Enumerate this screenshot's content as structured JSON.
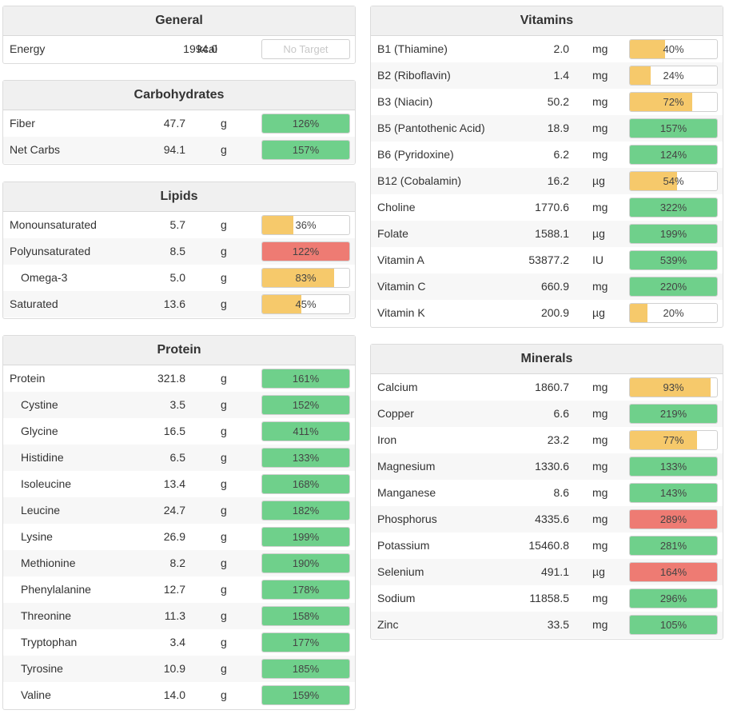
{
  "colors": {
    "green": "#6fd08b",
    "yellow": "#f6c96b",
    "red": "#ee7b73"
  },
  "general": {
    "title": "General",
    "rows": [
      {
        "name": "Energy",
        "amount": "1994.0",
        "unit": "kcal",
        "pct": "No Target",
        "fill": 0,
        "color": "none",
        "indent": false
      }
    ]
  },
  "carbohydrates": {
    "title": "Carbohydrates",
    "rows": [
      {
        "name": "Fiber",
        "amount": "47.7",
        "unit": "g",
        "pct": "126%",
        "fill": 1,
        "color": "green",
        "indent": false
      },
      {
        "name": "Net Carbs",
        "amount": "94.1",
        "unit": "g",
        "pct": "157%",
        "fill": 1,
        "color": "green",
        "indent": false
      }
    ]
  },
  "lipids": {
    "title": "Lipids",
    "rows": [
      {
        "name": "Monounsaturated",
        "amount": "5.7",
        "unit": "g",
        "pct": "36%",
        "fill": 0.36,
        "color": "yellow",
        "indent": false
      },
      {
        "name": "Polyunsaturated",
        "amount": "8.5",
        "unit": "g",
        "pct": "122%",
        "fill": 1,
        "color": "red",
        "indent": false
      },
      {
        "name": "Omega-3",
        "amount": "5.0",
        "unit": "g",
        "pct": "83%",
        "fill": 0.83,
        "color": "yellow",
        "indent": true
      },
      {
        "name": "Saturated",
        "amount": "13.6",
        "unit": "g",
        "pct": "45%",
        "fill": 0.45,
        "color": "yellow",
        "indent": false
      }
    ]
  },
  "protein": {
    "title": "Protein",
    "rows": [
      {
        "name": "Protein",
        "amount": "321.8",
        "unit": "g",
        "pct": "161%",
        "fill": 1,
        "color": "green",
        "indent": false
      },
      {
        "name": "Cystine",
        "amount": "3.5",
        "unit": "g",
        "pct": "152%",
        "fill": 1,
        "color": "green",
        "indent": true
      },
      {
        "name": "Glycine",
        "amount": "16.5",
        "unit": "g",
        "pct": "411%",
        "fill": 1,
        "color": "green",
        "indent": true
      },
      {
        "name": "Histidine",
        "amount": "6.5",
        "unit": "g",
        "pct": "133%",
        "fill": 1,
        "color": "green",
        "indent": true
      },
      {
        "name": "Isoleucine",
        "amount": "13.4",
        "unit": "g",
        "pct": "168%",
        "fill": 1,
        "color": "green",
        "indent": true
      },
      {
        "name": "Leucine",
        "amount": "24.7",
        "unit": "g",
        "pct": "182%",
        "fill": 1,
        "color": "green",
        "indent": true
      },
      {
        "name": "Lysine",
        "amount": "26.9",
        "unit": "g",
        "pct": "199%",
        "fill": 1,
        "color": "green",
        "indent": true
      },
      {
        "name": "Methionine",
        "amount": "8.2",
        "unit": "g",
        "pct": "190%",
        "fill": 1,
        "color": "green",
        "indent": true
      },
      {
        "name": "Phenylalanine",
        "amount": "12.7",
        "unit": "g",
        "pct": "178%",
        "fill": 1,
        "color": "green",
        "indent": true
      },
      {
        "name": "Threonine",
        "amount": "11.3",
        "unit": "g",
        "pct": "158%",
        "fill": 1,
        "color": "green",
        "indent": true
      },
      {
        "name": "Tryptophan",
        "amount": "3.4",
        "unit": "g",
        "pct": "177%",
        "fill": 1,
        "color": "green",
        "indent": true
      },
      {
        "name": "Tyrosine",
        "amount": "10.9",
        "unit": "g",
        "pct": "185%",
        "fill": 1,
        "color": "green",
        "indent": true
      },
      {
        "name": "Valine",
        "amount": "14.0",
        "unit": "g",
        "pct": "159%",
        "fill": 1,
        "color": "green",
        "indent": true
      }
    ]
  },
  "vitamins": {
    "title": "Vitamins",
    "rows": [
      {
        "name": "B1 (Thiamine)",
        "amount": "2.0",
        "unit": "mg",
        "pct": "40%",
        "fill": 0.4,
        "color": "yellow",
        "indent": false
      },
      {
        "name": "B2 (Riboflavin)",
        "amount": "1.4",
        "unit": "mg",
        "pct": "24%",
        "fill": 0.24,
        "color": "yellow",
        "indent": false
      },
      {
        "name": "B3 (Niacin)",
        "amount": "50.2",
        "unit": "mg",
        "pct": "72%",
        "fill": 0.72,
        "color": "yellow",
        "indent": false
      },
      {
        "name": "B5 (Pantothenic Acid)",
        "amount": "18.9",
        "unit": "mg",
        "pct": "157%",
        "fill": 1,
        "color": "green",
        "indent": false
      },
      {
        "name": "B6 (Pyridoxine)",
        "amount": "6.2",
        "unit": "mg",
        "pct": "124%",
        "fill": 1,
        "color": "green",
        "indent": false
      },
      {
        "name": "B12 (Cobalamin)",
        "amount": "16.2",
        "unit": "µg",
        "pct": "54%",
        "fill": 0.54,
        "color": "yellow",
        "indent": false
      },
      {
        "name": "Choline",
        "amount": "1770.6",
        "unit": "mg",
        "pct": "322%",
        "fill": 1,
        "color": "green",
        "indent": false
      },
      {
        "name": "Folate",
        "amount": "1588.1",
        "unit": "µg",
        "pct": "199%",
        "fill": 1,
        "color": "green",
        "indent": false
      },
      {
        "name": "Vitamin A",
        "amount": "53877.2",
        "unit": "IU",
        "pct": "539%",
        "fill": 1,
        "color": "green",
        "indent": false
      },
      {
        "name": "Vitamin C",
        "amount": "660.9",
        "unit": "mg",
        "pct": "220%",
        "fill": 1,
        "color": "green",
        "indent": false
      },
      {
        "name": "Vitamin K",
        "amount": "200.9",
        "unit": "µg",
        "pct": "20%",
        "fill": 0.2,
        "color": "yellow",
        "indent": false
      }
    ]
  },
  "minerals": {
    "title": "Minerals",
    "rows": [
      {
        "name": "Calcium",
        "amount": "1860.7",
        "unit": "mg",
        "pct": "93%",
        "fill": 0.93,
        "color": "yellow",
        "indent": false
      },
      {
        "name": "Copper",
        "amount": "6.6",
        "unit": "mg",
        "pct": "219%",
        "fill": 1,
        "color": "green",
        "indent": false
      },
      {
        "name": "Iron",
        "amount": "23.2",
        "unit": "mg",
        "pct": "77%",
        "fill": 0.77,
        "color": "yellow",
        "indent": false
      },
      {
        "name": "Magnesium",
        "amount": "1330.6",
        "unit": "mg",
        "pct": "133%",
        "fill": 1,
        "color": "green",
        "indent": false
      },
      {
        "name": "Manganese",
        "amount": "8.6",
        "unit": "mg",
        "pct": "143%",
        "fill": 1,
        "color": "green",
        "indent": false
      },
      {
        "name": "Phosphorus",
        "amount": "4335.6",
        "unit": "mg",
        "pct": "289%",
        "fill": 1,
        "color": "red",
        "indent": false
      },
      {
        "name": "Potassium",
        "amount": "15460.8",
        "unit": "mg",
        "pct": "281%",
        "fill": 1,
        "color": "green",
        "indent": false
      },
      {
        "name": "Selenium",
        "amount": "491.1",
        "unit": "µg",
        "pct": "164%",
        "fill": 1,
        "color": "red",
        "indent": false
      },
      {
        "name": "Sodium",
        "amount": "11858.5",
        "unit": "mg",
        "pct": "296%",
        "fill": 1,
        "color": "green",
        "indent": false
      },
      {
        "name": "Zinc",
        "amount": "33.5",
        "unit": "mg",
        "pct": "105%",
        "fill": 1,
        "color": "green",
        "indent": false
      }
    ]
  }
}
